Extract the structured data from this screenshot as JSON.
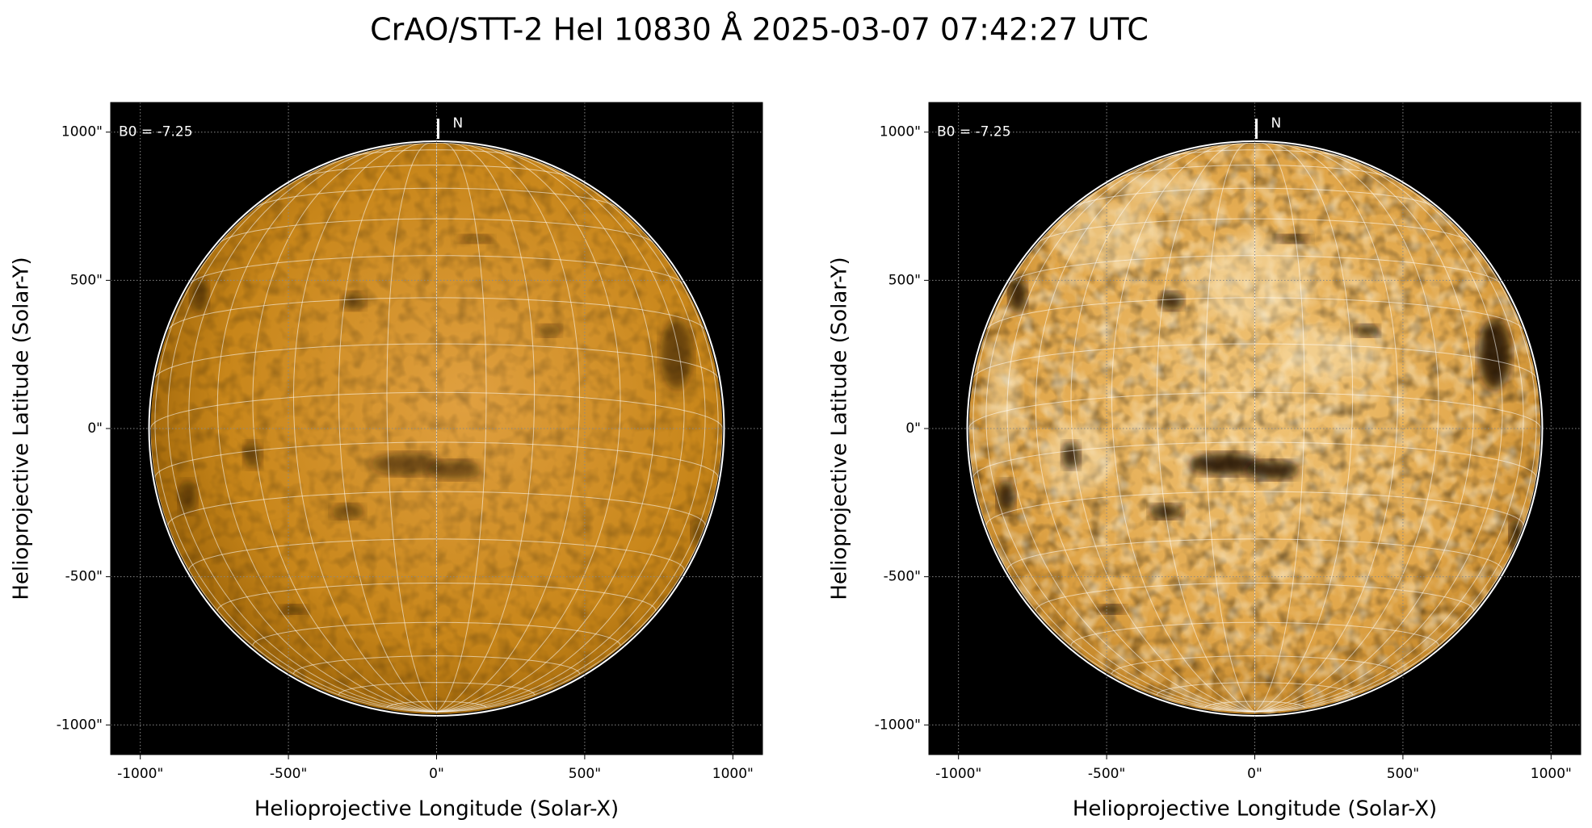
{
  "title": "CrAO/STT-2 HeI 10830 Å 2025-03-07 07:42:27 UTC",
  "chart_data": [
    {
      "type": "image",
      "x_label": "Helioprojective Longitude (Solar-X)",
      "y_label": "Helioprojective Latitude (Solar-Y)",
      "annotations": [
        "B0 = -7.25",
        "N"
      ],
      "xlim": [
        -1100,
        1100
      ],
      "ylim": [
        -1100,
        1100
      ],
      "xticks": [
        {
          "value": -1000,
          "label": "-1000\""
        },
        {
          "value": -500,
          "label": "-500\""
        },
        {
          "value": 0,
          "label": "0\""
        },
        {
          "value": 500,
          "label": "500\""
        },
        {
          "value": 1000,
          "label": "1000\""
        }
      ],
      "yticks": [
        {
          "value": -1000,
          "label": "-1000\""
        },
        {
          "value": -500,
          "label": "-500\""
        },
        {
          "value": 0,
          "label": "0\""
        },
        {
          "value": 500,
          "label": "500\""
        },
        {
          "value": 1000,
          "label": "1000\""
        }
      ],
      "grid": true
    },
    {
      "type": "image",
      "x_label": "Helioprojective Longitude (Solar-X)",
      "y_label": "Helioprojective Latitude (Solar-Y)",
      "annotations": [
        "B0 = -7.25",
        "N"
      ],
      "xlim": [
        -1100,
        1100
      ],
      "ylim": [
        -1100,
        1100
      ],
      "xticks": [
        {
          "value": -1000,
          "label": "-1000\""
        },
        {
          "value": -500,
          "label": "-500\""
        },
        {
          "value": 0,
          "label": "0\""
        },
        {
          "value": 500,
          "label": "500\""
        },
        {
          "value": 1000,
          "label": "1000\""
        }
      ],
      "yticks": [
        {
          "value": -1000,
          "label": "-1000\""
        },
        {
          "value": -500,
          "label": "-500\""
        },
        {
          "value": 0,
          "label": "0\""
        },
        {
          "value": 500,
          "label": "500\""
        },
        {
          "value": 1000,
          "label": "1000\""
        }
      ],
      "grid": true
    }
  ]
}
